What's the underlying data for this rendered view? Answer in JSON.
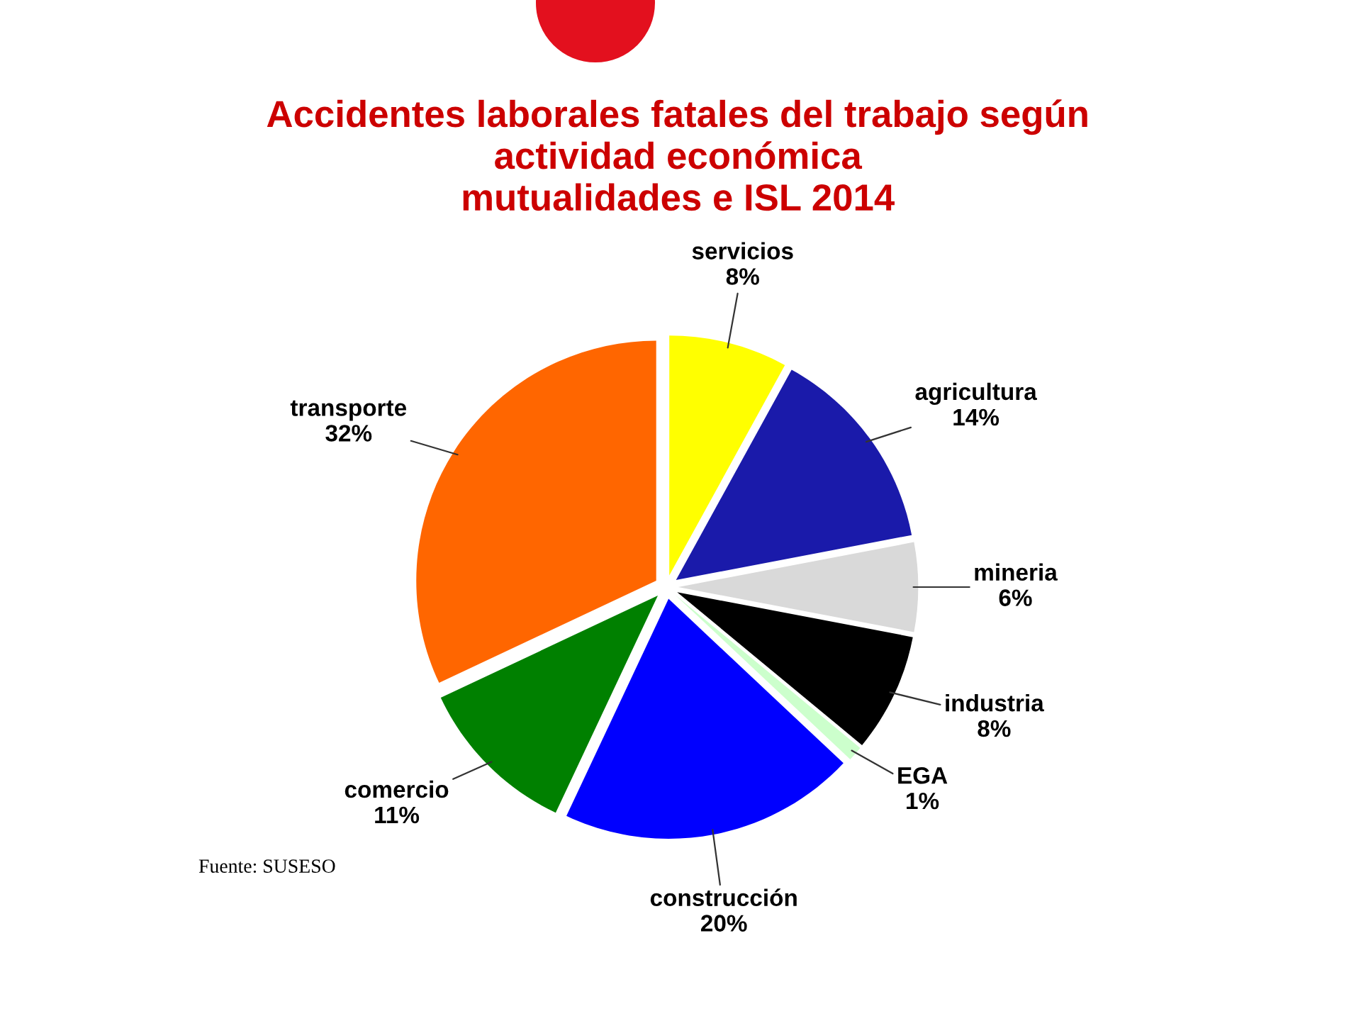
{
  "chart_data": {
    "type": "pie",
    "title": "Accidentes laborales fatales del trabajo según\nactividad económica\nmutualidades e ISL 2014",
    "categories": [
      "servicios",
      "agricultura",
      "mineria",
      "industria",
      "EGA",
      "construcción",
      "comercio",
      "transporte"
    ],
    "values": [
      8,
      14,
      6,
      8,
      1,
      20,
      11,
      32
    ],
    "value_labels": [
      "8%",
      "14%",
      "6%",
      "8%",
      "1%",
      "20%",
      "11%",
      "32%"
    ],
    "colors": [
      "#ffff00",
      "#1a1aaa",
      "#d9d9d9",
      "#000000",
      "#ccffcc",
      "#0000ff",
      "#008000",
      "#ff6600"
    ],
    "annotations": [
      "Fuente: SUSESO"
    ]
  }
}
